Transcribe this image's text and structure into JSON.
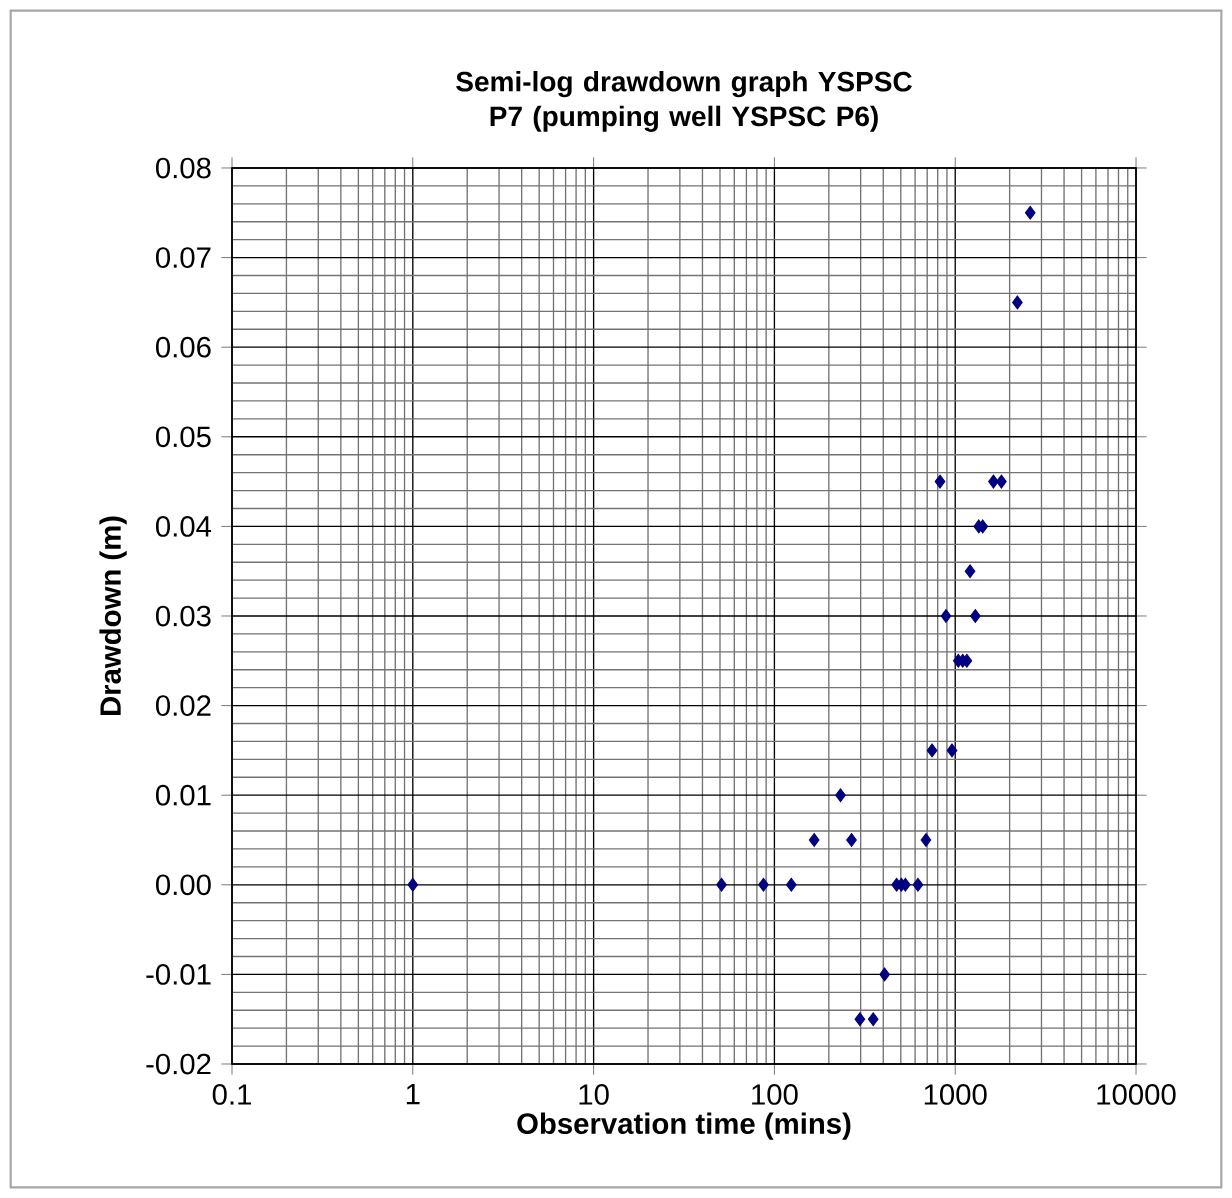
{
  "chart_data": {
    "type": "scatter",
    "title": "Semi-log drawdown graph YSPSC P7 (pumping well YSPSC P6)",
    "xlabel": "Observation time (mins)",
    "ylabel": "Drawdown (m)",
    "series": [
      {
        "color": "#000080",
        "x": [
          1,
          51,
          87,
          124,
          166,
          232,
          267,
          297,
          352,
          407,
          474,
          504,
          530,
          622,
          689,
          745,
          960,
          824,
          1627,
          1801,
          1350,
          1420,
          1208,
          889,
          1292,
          1040,
          1100,
          1160,
          2208,
          2600
        ],
        "values": [
          0,
          0,
          0,
          0,
          0.005,
          0.01,
          0.005,
          -0.015,
          -0.015,
          -0.01,
          0,
          0,
          0,
          0,
          0.005,
          0.015,
          0.015,
          0.045,
          0.045,
          0.045,
          0.04,
          0.04,
          0.035,
          0.03,
          0.03,
          0.025,
          0.025,
          0.025,
          0.065,
          0.075
        ]
      }
    ],
    "xlim": [
      0.1,
      10000
    ],
    "ylim": [
      -0.02,
      0.08
    ],
    "xticks": [
      0.1,
      1,
      10,
      100,
      1000,
      10000
    ],
    "yticks": [
      -0.02,
      -0.01,
      {
        "value": 0,
        "label": "0.00"
      },
      0.01,
      0.02,
      0.03,
      0.04,
      0.05,
      0.06,
      0.07,
      0.08
    ],
    "log": "x",
    "grid": true,
    "marker": "diamond"
  }
}
